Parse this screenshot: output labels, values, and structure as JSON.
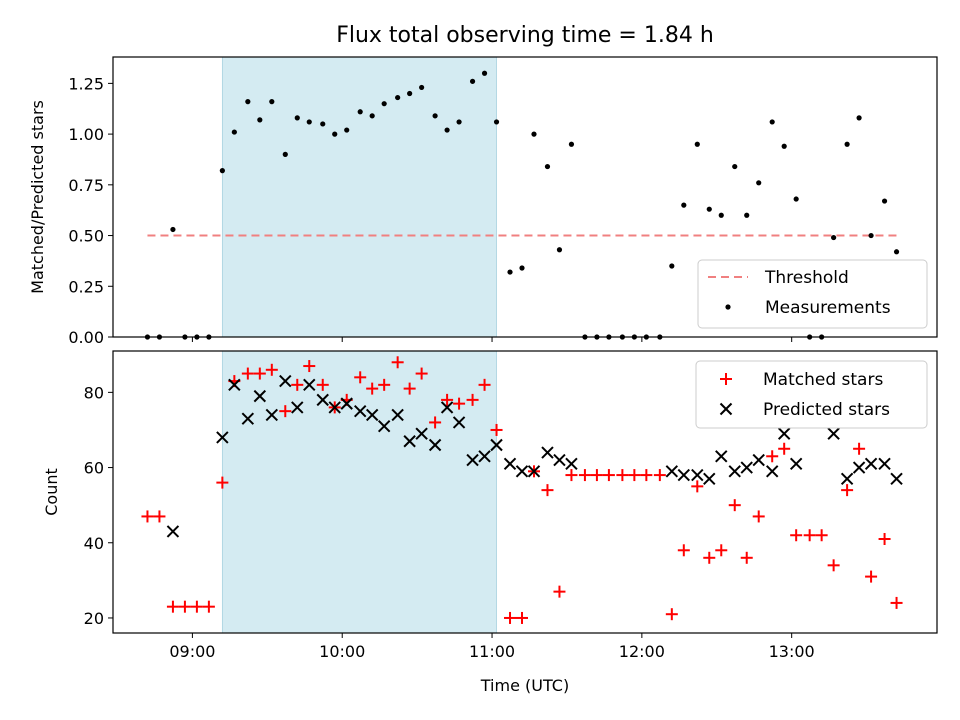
{
  "title": "Flux total observing time = 1.84 h",
  "colors": {
    "highlight": "#d4ebf2",
    "threshold": "#f08080",
    "measurement": "#000000",
    "matched": "#ff0000",
    "predicted": "#000000"
  },
  "x_axis": {
    "label": "Time (UTC)",
    "range_hours": [
      8.47,
      13.97
    ],
    "ticks": [
      {
        "value": 9,
        "label": "09:00"
      },
      {
        "value": 10,
        "label": "10:00"
      },
      {
        "value": 11,
        "label": "11:00"
      },
      {
        "value": 12,
        "label": "12:00"
      },
      {
        "value": 13,
        "label": "13:00"
      }
    ]
  },
  "highlight_span_hours": [
    9.2,
    11.03
  ],
  "chart_data": [
    {
      "type": "scatter",
      "ylabel": "Matched/Predicted stars",
      "ylim": [
        0,
        1.38
      ],
      "yticks": [
        {
          "value": 0.0,
          "label": "0.00"
        },
        {
          "value": 0.25,
          "label": "0.25"
        },
        {
          "value": 0.5,
          "label": "0.50"
        },
        {
          "value": 0.75,
          "label": "0.75"
        },
        {
          "value": 1.0,
          "label": "1.00"
        },
        {
          "value": 1.25,
          "label": "1.25"
        }
      ],
      "threshold": {
        "name": "Threshold",
        "value": 0.5,
        "x_range": [
          8.7,
          13.7
        ]
      },
      "legend_position": "lower right",
      "series": [
        {
          "name": "Measurements",
          "points": [
            [
              8.7,
              0.0
            ],
            [
              8.78,
              0.0
            ],
            [
              8.87,
              0.53
            ],
            [
              8.95,
              0.0
            ],
            [
              9.03,
              0.0
            ],
            [
              9.11,
              0.0
            ],
            [
              9.2,
              0.82
            ],
            [
              9.28,
              1.01
            ],
            [
              9.37,
              1.16
            ],
            [
              9.45,
              1.07
            ],
            [
              9.53,
              1.16
            ],
            [
              9.62,
              0.9
            ],
            [
              9.7,
              1.08
            ],
            [
              9.78,
              1.06
            ],
            [
              9.87,
              1.05
            ],
            [
              9.95,
              1.0
            ],
            [
              10.03,
              1.02
            ],
            [
              10.12,
              1.11
            ],
            [
              10.2,
              1.09
            ],
            [
              10.28,
              1.15
            ],
            [
              10.37,
              1.18
            ],
            [
              10.45,
              1.2
            ],
            [
              10.53,
              1.23
            ],
            [
              10.62,
              1.09
            ],
            [
              10.7,
              1.02
            ],
            [
              10.78,
              1.06
            ],
            [
              10.87,
              1.26
            ],
            [
              10.95,
              1.3
            ],
            [
              11.03,
              1.06
            ],
            [
              11.12,
              0.32
            ],
            [
              11.2,
              0.34
            ],
            [
              11.28,
              1.0
            ],
            [
              11.37,
              0.84
            ],
            [
              11.45,
              0.43
            ],
            [
              11.53,
              0.95
            ],
            [
              11.62,
              0.0
            ],
            [
              11.7,
              0.0
            ],
            [
              11.78,
              0.0
            ],
            [
              11.87,
              0.0
            ],
            [
              11.95,
              0.0
            ],
            [
              12.03,
              0.0
            ],
            [
              12.12,
              0.0
            ],
            [
              12.2,
              0.35
            ],
            [
              12.28,
              0.65
            ],
            [
              12.37,
              0.95
            ],
            [
              12.45,
              0.63
            ],
            [
              12.53,
              0.6
            ],
            [
              12.62,
              0.84
            ],
            [
              12.7,
              0.6
            ],
            [
              12.78,
              0.76
            ],
            [
              12.87,
              1.06
            ],
            [
              12.95,
              0.94
            ],
            [
              13.03,
              0.68
            ],
            [
              13.12,
              0.0
            ],
            [
              13.2,
              0.0
            ],
            [
              13.28,
              0.49
            ],
            [
              13.37,
              0.95
            ],
            [
              13.45,
              1.08
            ],
            [
              13.53,
              0.5
            ],
            [
              13.62,
              0.67
            ],
            [
              13.7,
              0.42
            ]
          ]
        }
      ]
    },
    {
      "type": "scatter",
      "ylabel": "Count",
      "ylim": [
        16,
        91
      ],
      "yticks": [
        {
          "value": 20,
          "label": "20"
        },
        {
          "value": 40,
          "label": "40"
        },
        {
          "value": 60,
          "label": "60"
        },
        {
          "value": 80,
          "label": "80"
        }
      ],
      "legend_position": "upper right",
      "series": [
        {
          "name": "Matched stars",
          "marker": "plus",
          "points": [
            [
              8.7,
              47
            ],
            [
              8.78,
              47
            ],
            [
              8.87,
              23
            ],
            [
              8.95,
              23
            ],
            [
              9.03,
              23
            ],
            [
              9.11,
              23
            ],
            [
              9.2,
              56
            ],
            [
              9.28,
              83
            ],
            [
              9.37,
              85
            ],
            [
              9.45,
              85
            ],
            [
              9.53,
              86
            ],
            [
              9.62,
              75
            ],
            [
              9.7,
              82
            ],
            [
              9.78,
              87
            ],
            [
              9.87,
              82
            ],
            [
              9.95,
              76
            ],
            [
              10.03,
              78
            ],
            [
              10.12,
              84
            ],
            [
              10.2,
              81
            ],
            [
              10.28,
              82
            ],
            [
              10.37,
              88
            ],
            [
              10.45,
              81
            ],
            [
              10.53,
              85
            ],
            [
              10.62,
              72
            ],
            [
              10.7,
              78
            ],
            [
              10.78,
              77
            ],
            [
              10.87,
              78
            ],
            [
              10.95,
              82
            ],
            [
              11.03,
              70
            ],
            [
              11.12,
              20
            ],
            [
              11.2,
              20
            ],
            [
              11.28,
              59
            ],
            [
              11.37,
              54
            ],
            [
              11.45,
              27
            ],
            [
              11.53,
              58
            ],
            [
              11.62,
              58
            ],
            [
              11.7,
              58
            ],
            [
              11.78,
              58
            ],
            [
              11.87,
              58
            ],
            [
              11.95,
              58
            ],
            [
              12.03,
              58
            ],
            [
              12.12,
              58
            ],
            [
              12.2,
              21
            ],
            [
              12.28,
              38
            ],
            [
              12.37,
              55
            ],
            [
              12.45,
              36
            ],
            [
              12.53,
              38
            ],
            [
              12.62,
              50
            ],
            [
              12.7,
              36
            ],
            [
              12.78,
              47
            ],
            [
              12.87,
              63
            ],
            [
              12.95,
              65
            ],
            [
              13.03,
              42
            ],
            [
              13.12,
              42
            ],
            [
              13.2,
              42
            ],
            [
              13.28,
              34
            ],
            [
              13.37,
              54
            ],
            [
              13.45,
              65
            ],
            [
              13.53,
              31
            ],
            [
              13.62,
              41
            ],
            [
              13.7,
              24
            ]
          ]
        },
        {
          "name": "Predicted stars",
          "marker": "x",
          "points": [
            [
              8.87,
              43
            ],
            [
              9.2,
              68
            ],
            [
              9.28,
              82
            ],
            [
              9.37,
              73
            ],
            [
              9.45,
              79
            ],
            [
              9.53,
              74
            ],
            [
              9.62,
              83
            ],
            [
              9.7,
              76
            ],
            [
              9.78,
              82
            ],
            [
              9.87,
              78
            ],
            [
              9.95,
              76
            ],
            [
              10.03,
              77
            ],
            [
              10.12,
              75
            ],
            [
              10.2,
              74
            ],
            [
              10.28,
              71
            ],
            [
              10.37,
              74
            ],
            [
              10.45,
              67
            ],
            [
              10.53,
              69
            ],
            [
              10.62,
              66
            ],
            [
              10.7,
              76
            ],
            [
              10.78,
              72
            ],
            [
              10.87,
              62
            ],
            [
              10.95,
              63
            ],
            [
              11.03,
              66
            ],
            [
              11.12,
              61
            ],
            [
              11.2,
              59
            ],
            [
              11.28,
              59
            ],
            [
              11.37,
              64
            ],
            [
              11.45,
              62
            ],
            [
              11.53,
              61
            ],
            [
              12.2,
              59
            ],
            [
              12.28,
              58
            ],
            [
              12.37,
              58
            ],
            [
              12.45,
              57
            ],
            [
              12.53,
              63
            ],
            [
              12.62,
              59
            ],
            [
              12.7,
              60
            ],
            [
              12.78,
              62
            ],
            [
              12.87,
              59
            ],
            [
              12.95,
              69
            ],
            [
              13.03,
              61
            ],
            [
              13.28,
              69
            ],
            [
              13.37,
              57
            ],
            [
              13.45,
              60
            ],
            [
              13.53,
              61
            ],
            [
              13.62,
              61
            ],
            [
              13.7,
              57
            ]
          ]
        }
      ]
    }
  ]
}
